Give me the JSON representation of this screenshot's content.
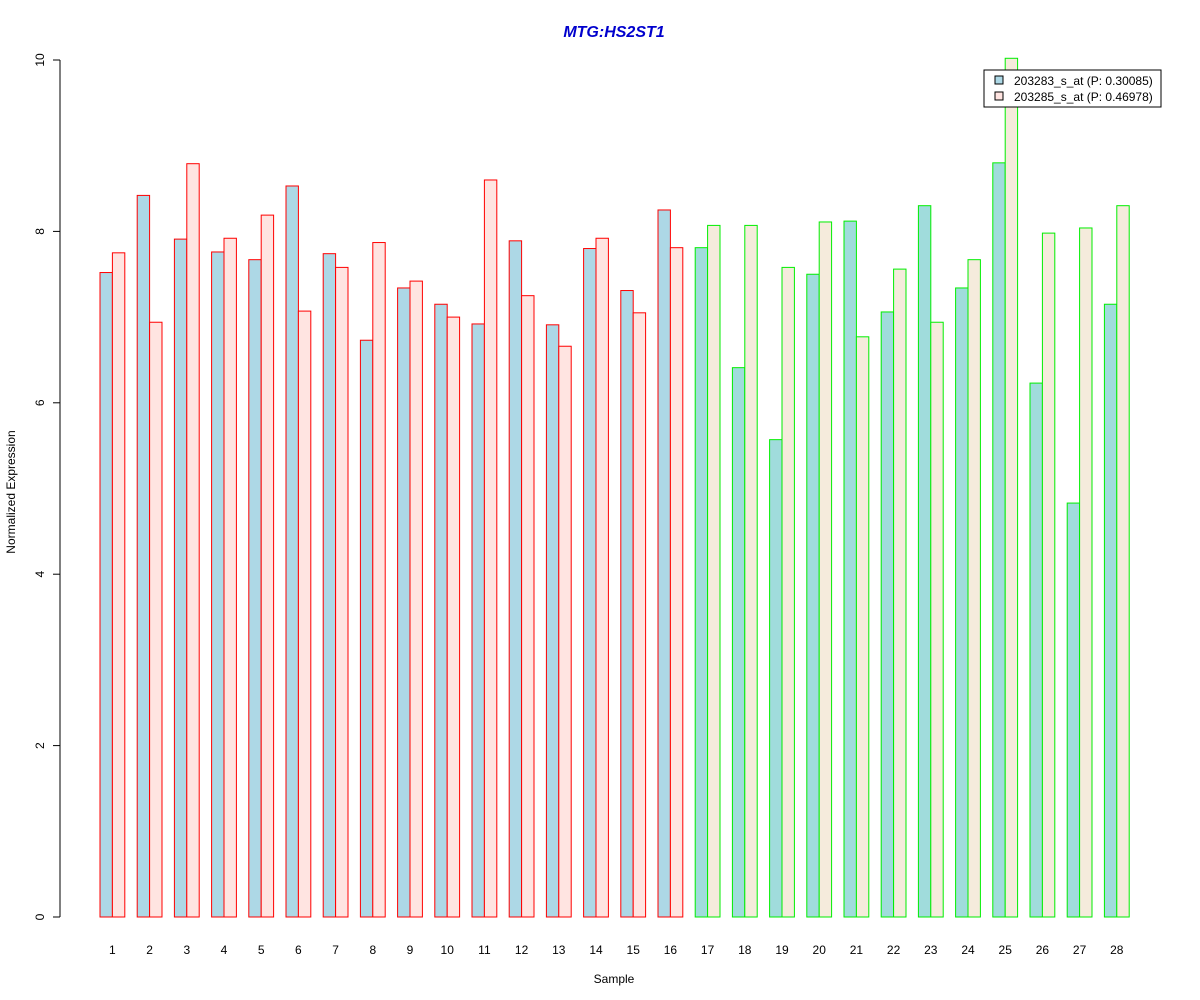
{
  "chart_data": {
    "type": "bar",
    "title": "MTG:HS2ST1",
    "xlabel": "Sample",
    "ylabel": "Normalized Expression",
    "ylim": [
      0,
      10
    ],
    "yticks": [
      0,
      2,
      4,
      6,
      8,
      10
    ],
    "categories": [
      "1",
      "2",
      "3",
      "4",
      "5",
      "6",
      "7",
      "8",
      "9",
      "10",
      "11",
      "12",
      "13",
      "14",
      "15",
      "16",
      "17",
      "18",
      "19",
      "20",
      "21",
      "22",
      "23",
      "24",
      "25",
      "26",
      "27",
      "28"
    ],
    "series": [
      {
        "name": "203283_s_at (P: 0.30085)",
        "values": [
          7.52,
          8.42,
          7.91,
          7.76,
          7.67,
          8.53,
          7.74,
          6.73,
          7.34,
          7.15,
          6.92,
          7.89,
          6.91,
          7.8,
          7.31,
          8.25,
          7.81,
          6.41,
          5.57,
          7.5,
          8.12,
          7.06,
          8.3,
          7.34,
          8.8,
          6.23,
          4.83,
          7.15
        ]
      },
      {
        "name": "203285_s_at (P: 0.46978)",
        "values": [
          7.75,
          6.94,
          8.79,
          7.92,
          8.19,
          7.07,
          7.58,
          7.87,
          7.42,
          7.0,
          8.6,
          7.25,
          6.66,
          7.92,
          7.05,
          7.81,
          8.07,
          8.07,
          7.58,
          8.11,
          6.77,
          7.56,
          6.94,
          7.67,
          10.02,
          7.98,
          8.04,
          8.3
        ]
      }
    ],
    "group_split_after": 16,
    "colors": {
      "series1_fill_group1": "#add8e6",
      "series2_fill_group1": "#ffe4e1",
      "series1_fill_group2": "#a0dcdc",
      "series2_fill_group2": "#f5ebdc",
      "border_group1": "#ff0000",
      "border_group2": "#00ee00",
      "title": "#0000cd",
      "axis": "#000000"
    },
    "legend": "top-right",
    "grid": false
  }
}
